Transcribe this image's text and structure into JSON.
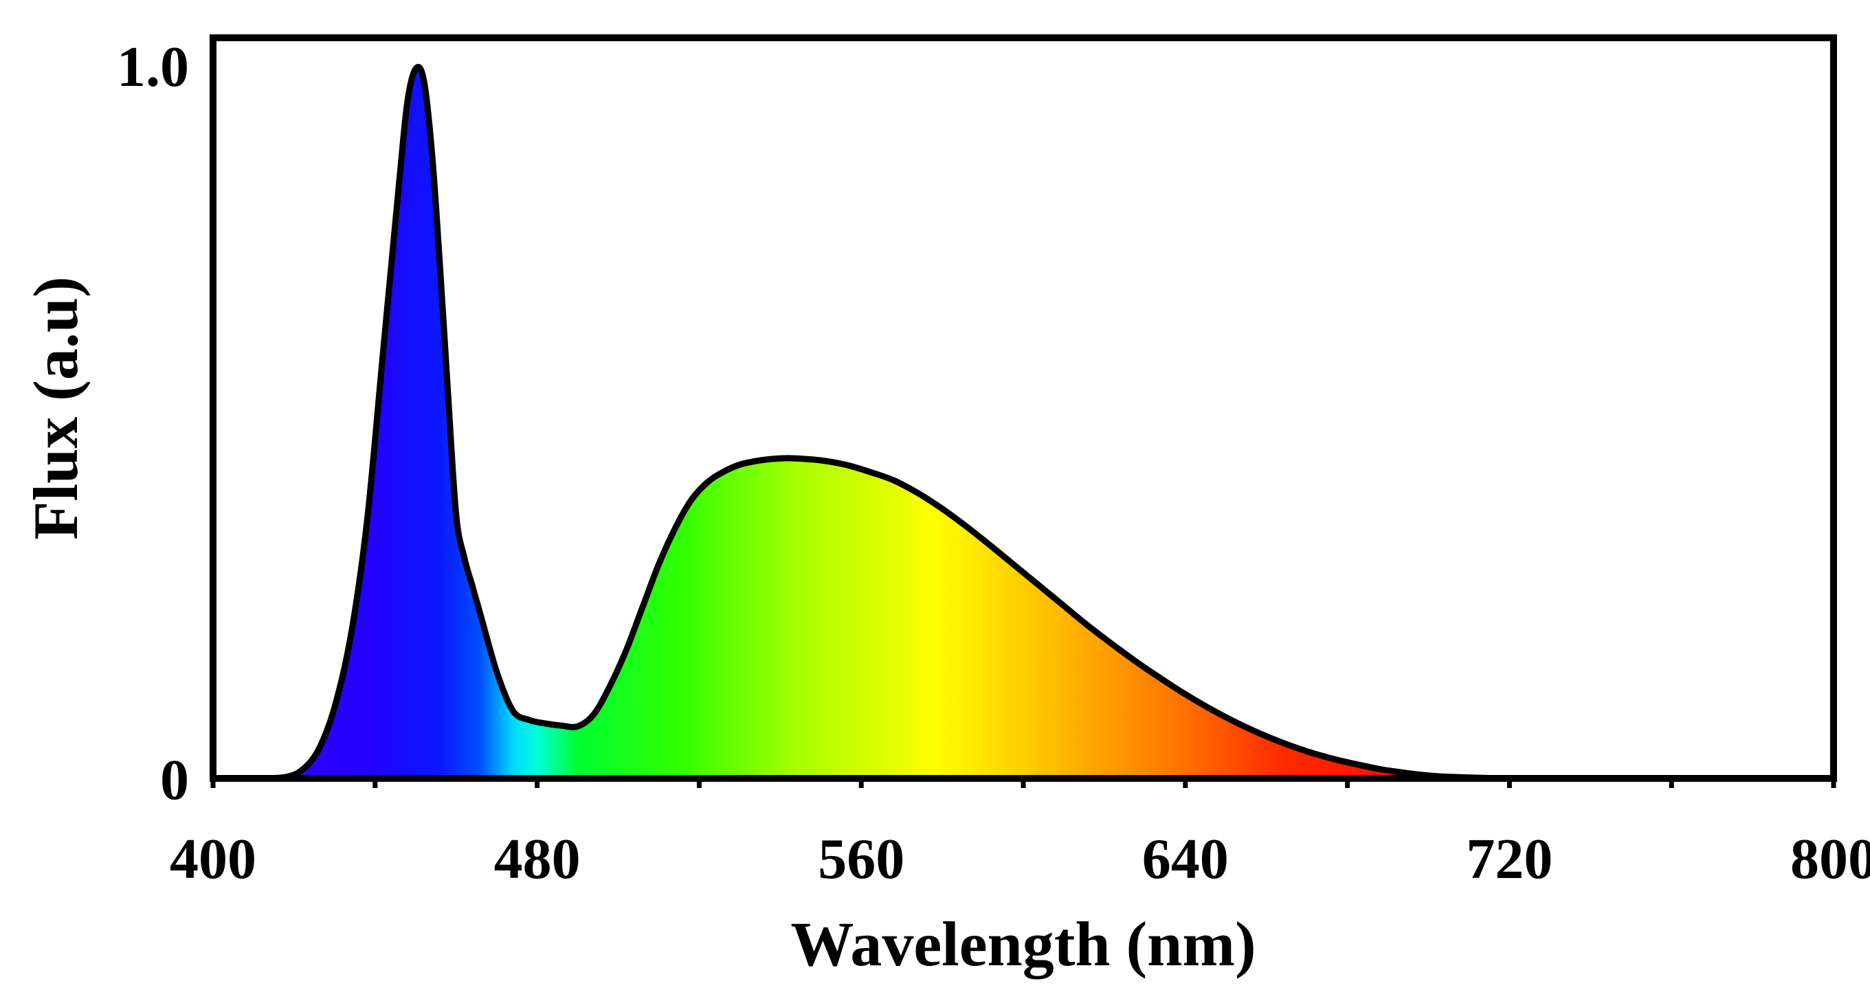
{
  "chart_data": {
    "type": "area",
    "title": "",
    "xlabel": "Wavelength (nm)",
    "ylabel": "Flux (a.u)",
    "xlim": [
      400,
      800
    ],
    "ylim": [
      0,
      1.0
    ],
    "x_ticks": [
      400,
      480,
      560,
      640,
      720,
      800
    ],
    "x_tick_labels": [
      "400",
      "480",
      "560",
      "640",
      "720",
      "800"
    ],
    "y_tick_labels": [
      {
        "value": 1.0,
        "label": "1.0"
      },
      {
        "value": 0,
        "label": "0"
      }
    ],
    "grid": false,
    "fill": "visible-spectrum gradient",
    "series": [
      {
        "name": "Flux",
        "x": [
          412,
          418,
          422,
          426,
          430,
          434,
          438,
          442,
          446,
          448,
          450,
          452,
          454,
          456,
          458,
          460,
          462,
          464,
          466,
          470,
          474,
          478,
          482,
          486,
          490,
          494,
          498,
          502,
          506,
          510,
          514,
          518,
          522,
          526,
          530,
          534,
          538,
          542,
          546,
          550,
          556,
          562,
          568,
          574,
          580,
          586,
          592,
          598,
          604,
          610,
          616,
          622,
          628,
          634,
          640,
          646,
          652,
          658,
          664,
          670,
          676,
          682,
          688,
          694,
          700,
          706,
          712,
          718,
          724,
          730,
          740,
          750,
          760,
          770,
          780,
          790,
          800
        ],
        "y": [
          0.0,
          0.002,
          0.012,
          0.04,
          0.1,
          0.2,
          0.36,
          0.6,
          0.84,
          0.95,
          0.995,
          0.98,
          0.88,
          0.72,
          0.54,
          0.37,
          0.31,
          0.27,
          0.23,
          0.15,
          0.095,
          0.082,
          0.077,
          0.074,
          0.073,
          0.09,
          0.13,
          0.18,
          0.24,
          0.3,
          0.35,
          0.39,
          0.415,
          0.43,
          0.44,
          0.445,
          0.448,
          0.449,
          0.448,
          0.446,
          0.44,
          0.43,
          0.418,
          0.4,
          0.378,
          0.353,
          0.326,
          0.298,
          0.27,
          0.242,
          0.214,
          0.188,
          0.163,
          0.14,
          0.118,
          0.098,
          0.08,
          0.064,
          0.05,
          0.038,
          0.028,
          0.02,
          0.013,
          0.008,
          0.004,
          0.002,
          0.001,
          0.0,
          0.0,
          0.0,
          0.0,
          0.0,
          0.0,
          0.0,
          0.0,
          0.0,
          0.0
        ]
      }
    ]
  }
}
